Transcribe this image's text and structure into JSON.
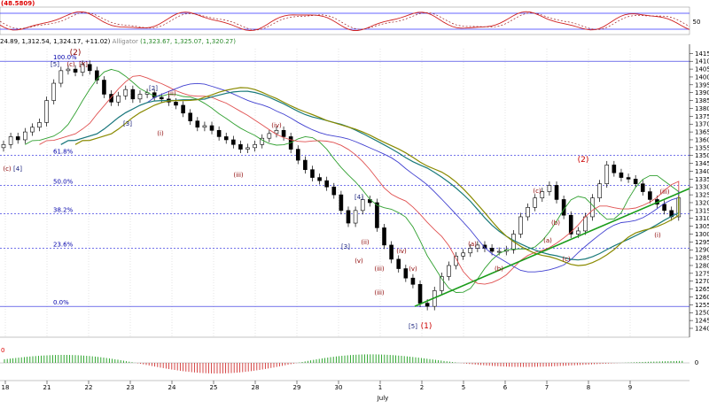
{
  "stoch_panel": {
    "label": "(48.5809)",
    "ticks": [
      "50"
    ]
  },
  "legend": {
    "price_text": "24.89, 1,312.54, 1,324.17, +11.02)",
    "indicator_name": "Alligator",
    "indicator_values": "(1,323.67, 1,325.07, 1,320.27)"
  },
  "price_axis": {
    "ticks": [
      "1415",
      "1410",
      "1405",
      "1400",
      "1395",
      "1390",
      "1385",
      "1380",
      "1375",
      "1370",
      "1365",
      "1360",
      "1355",
      "1350",
      "1345",
      "1340",
      "1335",
      "1330",
      "1325",
      "1320",
      "1315",
      "1310",
      "1305",
      "1300",
      "1295",
      "1290",
      "1285",
      "1280",
      "1275",
      "1270",
      "1265",
      "1260",
      "1255",
      "1250",
      "1245",
      "1240"
    ]
  },
  "fib_levels": [
    {
      "label": "100.0%",
      "value": 1410
    },
    {
      "label": "61.8%",
      "value": 1350
    },
    {
      "label": "50.0%",
      "value": 1331
    },
    {
      "label": "38.2%",
      "value": 1313
    },
    {
      "label": "23.6%",
      "value": 1291
    },
    {
      "label": "0.0%",
      "value": 1254
    }
  ],
  "wave_labels": [
    {
      "text": "(2)",
      "color": "#8b0000",
      "size": "big"
    },
    {
      "text": "[5]",
      "color": "#1a237e",
      "size": "small"
    },
    {
      "text": "(c)",
      "color": "#8b0000",
      "size": "small"
    },
    {
      "text": "[Y]",
      "color": "#8b0000",
      "size": "small"
    },
    {
      "text": "[4]",
      "color": "#1a237e",
      "size": "small"
    },
    {
      "text": "(c)",
      "color": "#8b0000",
      "size": "small"
    },
    {
      "text": "[2]",
      "color": "#1a237e",
      "size": "small"
    },
    {
      "text": "(ii)",
      "color": "#8b0000",
      "size": "small"
    },
    {
      "text": "[3]",
      "color": "#1a237e",
      "size": "small"
    },
    {
      "text": "(i)",
      "color": "#8b0000",
      "size": "small"
    },
    {
      "text": "(iv)",
      "color": "#8b0000",
      "size": "small"
    },
    {
      "text": "(iii)",
      "color": "#8b0000",
      "size": "small"
    },
    {
      "text": "(v)",
      "color": "#8b0000",
      "size": "small"
    },
    {
      "text": "[4]",
      "color": "#1a237e",
      "size": "small"
    },
    {
      "text": "(iii)",
      "color": "#8b0000",
      "size": "small"
    },
    {
      "text": "[3]",
      "color": "#1a237e",
      "size": "small"
    },
    {
      "text": "(ii)",
      "color": "#8b0000",
      "size": "small"
    },
    {
      "text": "(iv)",
      "color": "#8b0000",
      "size": "small"
    },
    {
      "text": "(iii)",
      "color": "#8b0000",
      "size": "small"
    },
    {
      "text": "(v)",
      "color": "#8b0000",
      "size": "small"
    },
    {
      "text": "[5]",
      "color": "#1a237e",
      "size": "small"
    },
    {
      "text": "(1)",
      "color": "#cc0000",
      "size": "big"
    },
    {
      "text": "(a)",
      "color": "#8b0000",
      "size": "small"
    },
    {
      "text": "(b)",
      "color": "#8b0000",
      "size": "small"
    },
    {
      "text": "(c)",
      "color": "#8b0000",
      "size": "small"
    },
    {
      "text": "(b)",
      "color": "#8b0000",
      "size": "small"
    },
    {
      "text": "(a)",
      "color": "#8b0000",
      "size": "small"
    },
    {
      "text": "(c)",
      "color": "#8b0000",
      "size": "small"
    },
    {
      "text": "(2)",
      "color": "#cc0000",
      "size": "big"
    },
    {
      "text": "(iii)",
      "color": "#8b0000",
      "size": "small"
    },
    {
      "text": "(i)",
      "color": "#8b0000",
      "size": "small"
    }
  ],
  "date_axis": {
    "labels": [
      "18",
      "21",
      "22",
      "23",
      "24",
      "25",
      "28",
      "29",
      "30",
      "1",
      "2",
      "5",
      "6",
      "7",
      "8",
      "9"
    ],
    "month_label": "July"
  },
  "sub_panel": {
    "label": "0",
    "zero_tick": "0"
  },
  "colors": {
    "fib_line": "#2222dd",
    "trendline": "#1a9c1a",
    "jaw": "#1a7a7a",
    "teeth": "#e05050",
    "lips": "#30a030",
    "blue_ma": "#4040d0",
    "olive_ma": "#8a8a00",
    "up_bar": "#1a9c1a",
    "down_bar": "#d03030"
  },
  "chart_data": [
    {
      "type": "line",
      "title": "",
      "series": [],
      "ylim": [
        1240,
        1418
      ],
      "price_bars": [
        1357,
        1362,
        1360,
        1365,
        1368,
        1371,
        1385,
        1396,
        1404,
        1405,
        1403,
        1408,
        1404,
        1398,
        1389,
        1384,
        1388,
        1392,
        1386,
        1389,
        1390,
        1387,
        1386,
        1384,
        1382,
        1377,
        1372,
        1368,
        1369,
        1366,
        1362,
        1360,
        1357,
        1354,
        1355,
        1357,
        1361,
        1364,
        1366,
        1362,
        1354,
        1347,
        1341,
        1336,
        1334,
        1330,
        1325,
        1315,
        1307,
        1315,
        1322,
        1320,
        1304,
        1293,
        1284,
        1278,
        1272,
        1268,
        1256,
        1254,
        1264,
        1273,
        1280,
        1286,
        1288,
        1291,
        1293,
        1291,
        1289,
        1289,
        1290,
        1300,
        1311,
        1317,
        1323,
        1327,
        1331,
        1322,
        1312,
        1300,
        1302,
        1311,
        1323,
        1332,
        1344,
        1339,
        1336,
        1335,
        1332,
        1327,
        1322,
        1319,
        1315,
        1311,
        1323
      ]
    }
  ]
}
